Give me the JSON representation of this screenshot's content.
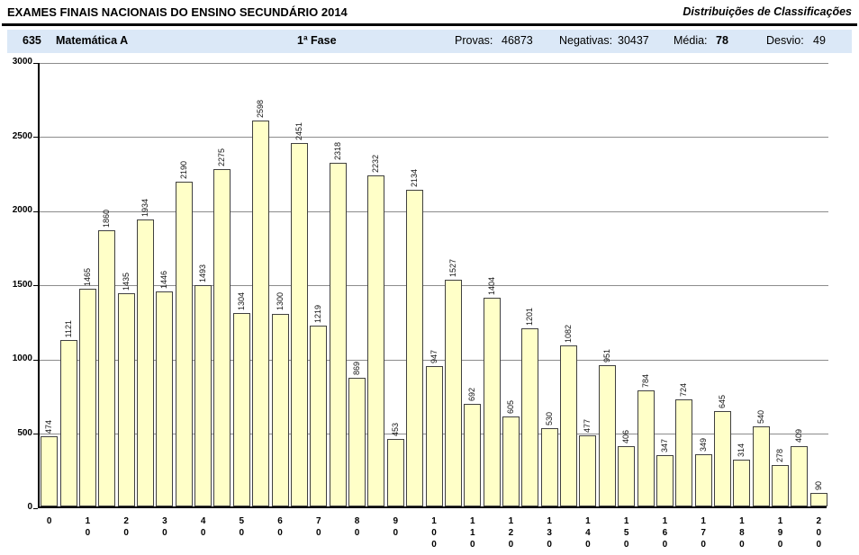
{
  "header": {
    "title": "EXAMES FINAIS NACIONAIS DO ENSINO SECUNDÁRIO 2014",
    "subtitle": "Distribuições de Classificações"
  },
  "info_bar": {
    "code": "635",
    "subject": "Matemática A",
    "phase": "1ª Fase",
    "stats": {
      "provas": {
        "label": "Provas:",
        "value": "46873"
      },
      "negativas": {
        "label": "Negativas:",
        "value": "30437"
      },
      "media": {
        "label": "Média:",
        "value": "78"
      },
      "desvio": {
        "label": "Desvio:",
        "value": "49"
      }
    }
  },
  "chart_data": {
    "type": "bar",
    "title": "Distribuição de classificações — 635 Matemática A, 1ª Fase, 2014",
    "x_scores": [
      0,
      5,
      10,
      15,
      20,
      25,
      30,
      35,
      40,
      45,
      50,
      55,
      60,
      65,
      70,
      75,
      80,
      85,
      90,
      95,
      100,
      105,
      110,
      115,
      120,
      125,
      130,
      135,
      140,
      145,
      150,
      155,
      160,
      165,
      170,
      175,
      180,
      185,
      190,
      195,
      200
    ],
    "values": [
      474,
      1121,
      1465,
      1860,
      1435,
      1934,
      1446,
      2190,
      1493,
      2275,
      1304,
      2598,
      1300,
      2451,
      1219,
      2318,
      869,
      2232,
      453,
      2134,
      947,
      1527,
      692,
      1404,
      605,
      1201,
      530,
      1082,
      477,
      951,
      406,
      784,
      347,
      724,
      349,
      645,
      314,
      540,
      278,
      409,
      90
    ],
    "xtick_labels": [
      "0",
      "10",
      "20",
      "30",
      "40",
      "50",
      "60",
      "70",
      "80",
      "90",
      "100",
      "110",
      "120",
      "130",
      "140",
      "150",
      "160",
      "170",
      "180",
      "190",
      "200"
    ],
    "ytick_labels": [
      "0",
      "500",
      "1000",
      "1500",
      "2000",
      "2500",
      "3000"
    ],
    "ylim": [
      0,
      3000
    ],
    "ytick_step": 500,
    "grid": true,
    "legend": false,
    "bar_value_labels_rotated": true,
    "colors": {
      "bar_fill": "#ffffc8",
      "bar_border": "#404040",
      "gridline": "#8c8c8c",
      "axis": "#000000",
      "band_background": "#dbe8f7"
    }
  }
}
